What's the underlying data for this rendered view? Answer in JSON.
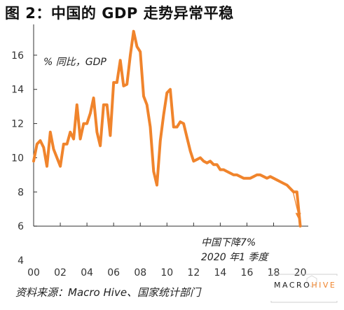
{
  "title": "图 2：中国的 GDP 走势异常平稳",
  "source": "资料来源：Macro Hive、国家统计部门",
  "brand": {
    "part1": "MACRO",
    "part2": "HIVE",
    "accent_color": "#f0842c"
  },
  "chart_data": {
    "type": "line",
    "title": "",
    "ylabel": "% 同比，GDP",
    "xlabel": "",
    "ylim": [
      4,
      18
    ],
    "xlim": [
      2000,
      2020.6
    ],
    "yticks": [
      4,
      6,
      8,
      10,
      12,
      14,
      16
    ],
    "xticks": [
      "00",
      "02",
      "04",
      "06",
      "08",
      "10",
      "12",
      "14",
      "16",
      "18",
      "20"
    ],
    "grid": false,
    "annotation": {
      "line1": "中国下降7%",
      "line2": "2020 年1 季度",
      "x": 2019.95,
      "y": 6.4
    },
    "series": [
      {
        "name": "",
        "color": "#f0842c",
        "x": [
          2000.0,
          2000.25,
          2000.5,
          2000.75,
          2001.0,
          2001.25,
          2001.5,
          2001.75,
          2002.0,
          2002.25,
          2002.5,
          2002.75,
          2003.0,
          2003.25,
          2003.5,
          2003.75,
          2004.0,
          2004.25,
          2004.5,
          2004.75,
          2005.0,
          2005.25,
          2005.5,
          2005.75,
          2006.0,
          2006.25,
          2006.5,
          2006.75,
          2007.0,
          2007.25,
          2007.5,
          2007.75,
          2008.0,
          2008.25,
          2008.5,
          2008.75,
          2009.0,
          2009.25,
          2009.5,
          2009.75,
          2010.0,
          2010.25,
          2010.5,
          2010.75,
          2011.0,
          2011.25,
          2011.5,
          2011.75,
          2012.0,
          2012.25,
          2012.5,
          2012.75,
          2013.0,
          2013.25,
          2013.5,
          2013.75,
          2014.0,
          2014.25,
          2014.5,
          2014.75,
          2015.0,
          2015.25,
          2015.5,
          2015.75,
          2016.0,
          2016.25,
          2016.5,
          2016.75,
          2017.0,
          2017.25,
          2017.5,
          2017.75,
          2018.0,
          2018.25,
          2018.5,
          2018.75,
          2019.0,
          2019.25,
          2019.5,
          2019.75,
          2020.0
        ],
        "values": [
          9.8,
          10.8,
          11.0,
          10.6,
          9.5,
          11.5,
          10.5,
          10.0,
          9.5,
          10.8,
          10.8,
          11.5,
          11.1,
          13.1,
          11.1,
          12.0,
          12.0,
          12.6,
          13.5,
          11.5,
          10.7,
          13.1,
          13.1,
          11.3,
          14.4,
          14.4,
          15.7,
          14.2,
          14.3,
          16.0,
          17.4,
          16.5,
          16.2,
          13.6,
          13.1,
          11.8,
          9.2,
          8.4,
          11.0,
          12.5,
          13.8,
          14.0,
          11.8,
          11.8,
          12.1,
          12.0,
          11.2,
          10.4,
          9.8,
          9.9,
          10.0,
          9.8,
          9.7,
          9.8,
          9.6,
          9.6,
          9.3,
          9.3,
          9.2,
          9.1,
          9.0,
          9.0,
          8.9,
          8.8,
          8.8,
          8.8,
          8.9,
          9.0,
          9.0,
          8.9,
          8.8,
          8.9,
          8.8,
          8.7,
          8.6,
          8.5,
          8.4,
          8.2,
          8.0,
          8.0,
          6.0
        ]
      }
    ]
  }
}
